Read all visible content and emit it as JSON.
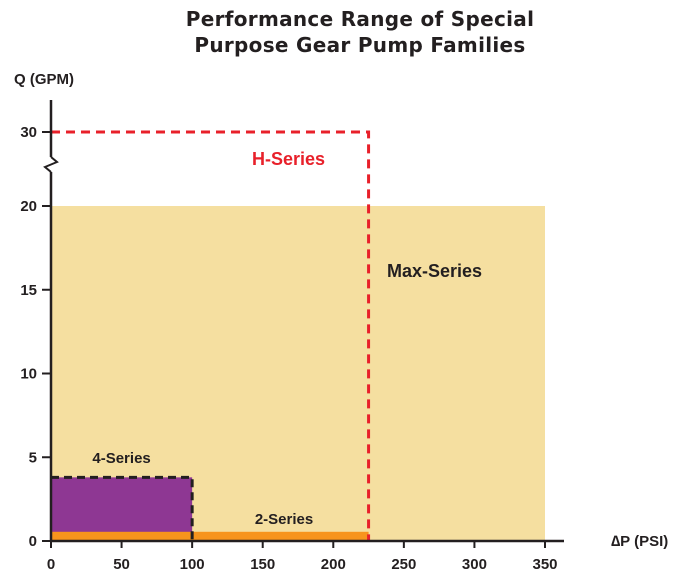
{
  "chart_data": {
    "type": "area",
    "title_line1": "Performance Range of Special",
    "title_line2": "Purpose Gear Pump Families",
    "xlabel": "∆P (PSI)",
    "ylabel": "Q (GPM)",
    "xlim": [
      0,
      375
    ],
    "ylim": [
      0,
      32
    ],
    "x_ticks": [
      0,
      50,
      100,
      150,
      200,
      250,
      300,
      350
    ],
    "y_ticks": [
      {
        "value": 0,
        "label": "0"
      },
      {
        "value": 5,
        "label": "5"
      },
      {
        "value": 10,
        "label": "10"
      },
      {
        "value": 15,
        "label": "15"
      },
      {
        "value": 20,
        "label": "20"
      },
      {
        "value": 30,
        "label": "30"
      }
    ],
    "axis_break": {
      "between": [
        20,
        30
      ]
    },
    "series": [
      {
        "name": "Max-Series",
        "x_range": [
          0,
          350
        ],
        "q_range": [
          0,
          20
        ],
        "fill": "#f5dfa0",
        "style": "filled"
      },
      {
        "name": "H-Series",
        "x_range": [
          0,
          225
        ],
        "q_range": [
          0,
          30
        ],
        "color": "#e8202a",
        "style": "dashed"
      },
      {
        "name": "4-Series",
        "x_range": [
          0,
          100
        ],
        "q_range": [
          0,
          3.8
        ],
        "fill": "#8e3793",
        "style": "filled-dashed"
      },
      {
        "name": "2-Series",
        "x_range": [
          0,
          225
        ],
        "q_range": [
          0,
          0.55
        ],
        "fill": "#f7941d",
        "style": "filled"
      }
    ],
    "grid": false,
    "legend": "none"
  }
}
